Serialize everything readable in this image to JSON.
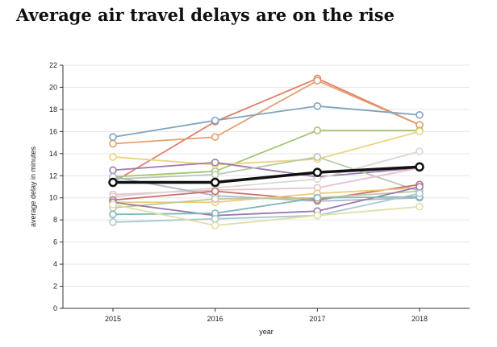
{
  "chart_data": {
    "type": "line",
    "title": "Average air travel delays are on the rise",
    "xlabel": "year",
    "ylabel": "average delay in minutes",
    "categories": [
      "2015",
      "2016",
      "2017",
      "2018"
    ],
    "ylim": [
      0,
      22
    ],
    "yticks": [
      0,
      2,
      4,
      6,
      8,
      10,
      12,
      14,
      16,
      18,
      20,
      22
    ],
    "grid": true,
    "series": [
      {
        "color": "#e0806a",
        "values": [
          11.4,
          16.9,
          20.8,
          16.6
        ]
      },
      {
        "color": "#e3a06e",
        "values": [
          14.9,
          15.5,
          20.6,
          16.6
        ]
      },
      {
        "color": "#7fa4c0",
        "values": [
          15.5,
          17.0,
          18.3,
          17.5
        ]
      },
      {
        "color": "#a4c474",
        "values": [
          11.9,
          12.4,
          16.1,
          16.1
        ]
      },
      {
        "color": "#ecd47e",
        "values": [
          13.7,
          13.0,
          13.5,
          16.0
        ]
      },
      {
        "color": "#a07cb0",
        "values": [
          12.5,
          13.2,
          11.9,
          12.7
        ]
      },
      {
        "color": "#b8c8b0",
        "values": [
          11.7,
          12.1,
          13.7,
          10.6
        ]
      },
      {
        "color": "#e8c0cc",
        "values": [
          10.3,
          10.7,
          10.9,
          12.7
        ]
      },
      {
        "color": "#d8d8d0",
        "values": [
          10.1,
          10.9,
          11.7,
          14.2
        ]
      },
      {
        "color": "#a8b8c8",
        "values": [
          11.9,
          10.2,
          9.7,
          10.0
        ]
      },
      {
        "color": "#c86e6e",
        "values": [
          9.8,
          10.6,
          9.8,
          11.2
        ]
      },
      {
        "color": "#f0c878",
        "values": [
          9.6,
          9.6,
          10.4,
          10.9
        ]
      },
      {
        "color": "#c0c8a0",
        "values": [
          9.1,
          9.9,
          10.0,
          10.6
        ]
      },
      {
        "color": "#9a7ab0",
        "values": [
          9.6,
          8.4,
          8.8,
          11.0
        ]
      },
      {
        "color": "#80b8b8",
        "values": [
          8.5,
          8.6,
          10.0,
          10.1
        ]
      },
      {
        "color": "#a8c8d0",
        "values": [
          7.8,
          8.1,
          8.4,
          10.4
        ]
      },
      {
        "color": "#e0e0a8",
        "values": [
          9.4,
          7.5,
          8.4,
          9.2
        ]
      },
      {
        "color": "#111111",
        "values": [
          11.4,
          11.4,
          12.3,
          12.8
        ],
        "highlight": true
      }
    ]
  }
}
